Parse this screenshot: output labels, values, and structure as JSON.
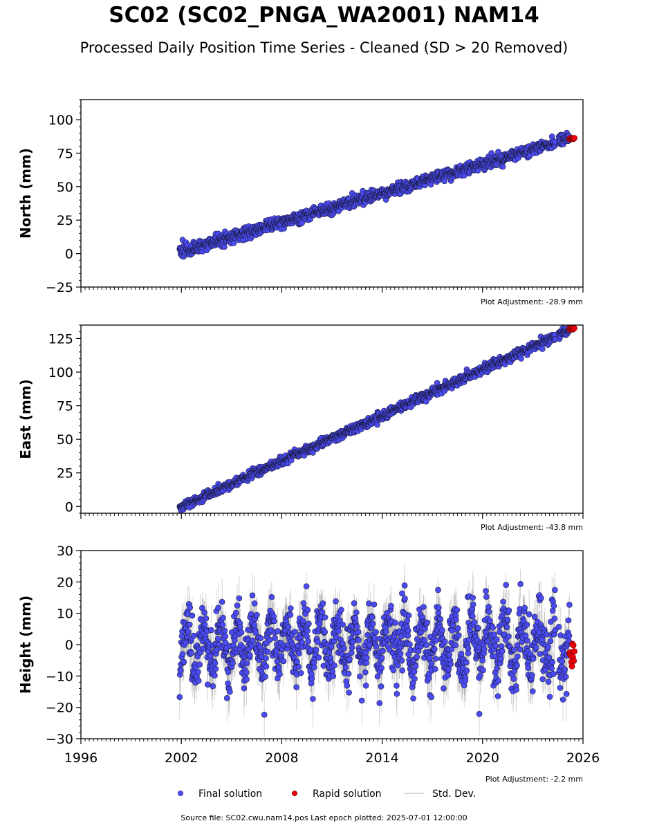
{
  "header": {
    "title": "SC02 (SC02_PNGA_WA2001) NAM14",
    "subtitle": "Processed Daily Position Time Series - Cleaned (SD > 20 Removed)"
  },
  "footer": {
    "source_text": "Source file: SC02.cwu.nam14.pos  Last epoch plotted: 2025-07-01 12:00:00"
  },
  "legend": {
    "placement": "bottom-center",
    "items": [
      {
        "label": "Final solution",
        "color": "#4b4bf5"
      },
      {
        "label": "Rapid solution",
        "color": "#e8000b"
      },
      {
        "label": "Std. Dev.",
        "color": "#c8c8c8"
      }
    ]
  },
  "chart_data": [
    {
      "type": "scatter",
      "id": "north",
      "ylabel": "North (mm)",
      "ylim": [
        -25,
        115
      ],
      "xlim": [
        1996,
        2026
      ],
      "y_ticks": [
        -25,
        0,
        25,
        50,
        75,
        100
      ],
      "y_tick_labels": [
        "−25",
        "0",
        "25",
        "50",
        "75",
        "100"
      ],
      "adjustment": "Plot Adjustment: -28.9 mm",
      "start": 2001.9,
      "end": 2025.5,
      "final": {
        "rate_pts": [
          [
            2001.9,
            1
          ],
          [
            2025.3,
            86
          ]
        ],
        "scatter": 2.2,
        "sd": 1.8
      },
      "rapid": {
        "start": 2025.2,
        "end": 2025.5,
        "y": [
          85.5,
          86.3
        ]
      },
      "gap": [
        2024.35,
        2024.55
      ]
    },
    {
      "type": "scatter",
      "id": "east",
      "ylabel": "East (mm)",
      "ylim": [
        -5,
        135
      ],
      "xlim": [
        1996,
        2026
      ],
      "y_ticks": [
        0,
        25,
        50,
        75,
        100,
        125
      ],
      "y_tick_labels": [
        "0",
        "25",
        "50",
        "75",
        "100",
        "125"
      ],
      "adjustment": "Plot Adjustment: -43.8 mm",
      "start": 2001.9,
      "end": 2025.5,
      "final": {
        "rate_pts": [
          [
            2001.9,
            -1
          ],
          [
            2025.3,
            132
          ]
        ],
        "scatter": 1.6,
        "sd": 1.5
      },
      "rapid": {
        "start": 2025.2,
        "end": 2025.5,
        "y": [
          131.5,
          133.5
        ]
      },
      "gap": [
        2024.35,
        2024.55
      ]
    },
    {
      "type": "scatter",
      "id": "height",
      "ylabel": "Height (mm)",
      "ylim": [
        -30,
        30
      ],
      "xlim": [
        1996,
        2026
      ],
      "y_ticks": [
        -30,
        -20,
        -10,
        0,
        10,
        20,
        30
      ],
      "y_tick_labels": [
        "−30",
        "−20",
        "−10",
        "0",
        "10",
        "20",
        "30"
      ],
      "x_ticks": [
        1996,
        2002,
        2008,
        2014,
        2020,
        2026
      ],
      "x_tick_labels": [
        "1996",
        "2002",
        "2008",
        "2014",
        "2020",
        "2026"
      ],
      "adjustment": "Plot Adjustment: -2.2 mm",
      "start": 2001.9,
      "end": 2025.5,
      "final": {
        "rate_pts": [
          [
            2001.9,
            0
          ],
          [
            2025.3,
            0
          ]
        ],
        "seasonal_amp": 7,
        "scatter": 5,
        "sd": 6
      },
      "rapid": {
        "start": 2025.2,
        "end": 2025.5,
        "y": [
          -9.5,
          1.5
        ]
      },
      "gap": [
        2024.35,
        2024.55
      ]
    }
  ]
}
